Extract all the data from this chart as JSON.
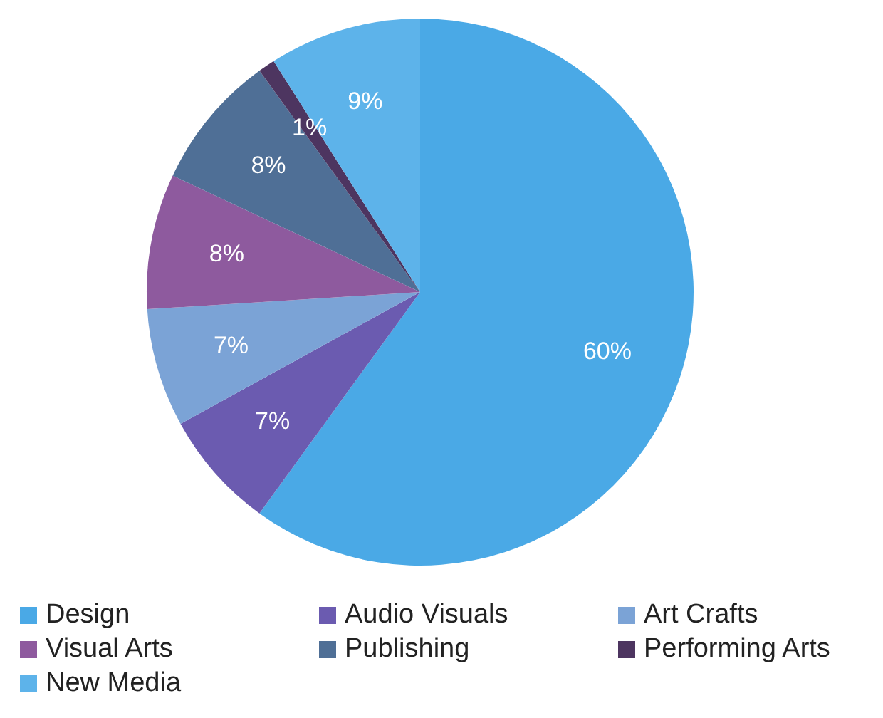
{
  "chart_data": {
    "type": "pie",
    "categories": [
      "Design",
      "Audio Visuals",
      "Art Crafts",
      "Visual Arts",
      "Publishing",
      "Performing Arts",
      "New Media"
    ],
    "values": [
      60,
      7,
      7,
      8,
      8,
      1,
      9
    ],
    "value_labels": [
      "60%",
      "7%",
      "7%",
      "8%",
      "8%",
      "1%",
      "9%"
    ],
    "colors": [
      "#4aa9e6",
      "#6b5bb0",
      "#7ba3d6",
      "#8e5a9e",
      "#4f6f96",
      "#4d3560",
      "#5db3ea"
    ],
    "legend": "bottom"
  }
}
